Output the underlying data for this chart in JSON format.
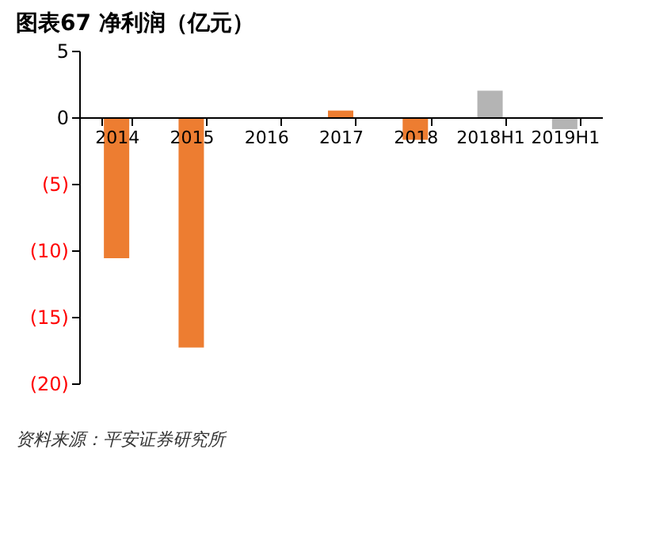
{
  "chart_data": {
    "type": "bar",
    "title": "图表67    净利润（亿元）",
    "categories": [
      "2014",
      "2015",
      "2016",
      "2017",
      "2018",
      "2018H1",
      "2019H1"
    ],
    "values": [
      -10.6,
      -17.3,
      null,
      0.5,
      -1.7,
      2.0,
      -0.9
    ],
    "colors": [
      "#ed7d31",
      "#ed7d31",
      "#ed7d31",
      "#ed7d31",
      "#ed7d31",
      "#b4b4b4",
      "#b4b4b4"
    ],
    "ylim": [
      -20,
      5
    ],
    "yticks": [
      5,
      0,
      {
        "value": -5,
        "label": "(5)"
      },
      {
        "value": -10,
        "label": "(10)"
      },
      {
        "value": -15,
        "label": "(15)"
      },
      {
        "value": -20,
        "label": "(20)"
      }
    ],
    "grid": false,
    "annotations": [
      "资料来源：平安证券研究所"
    ]
  }
}
